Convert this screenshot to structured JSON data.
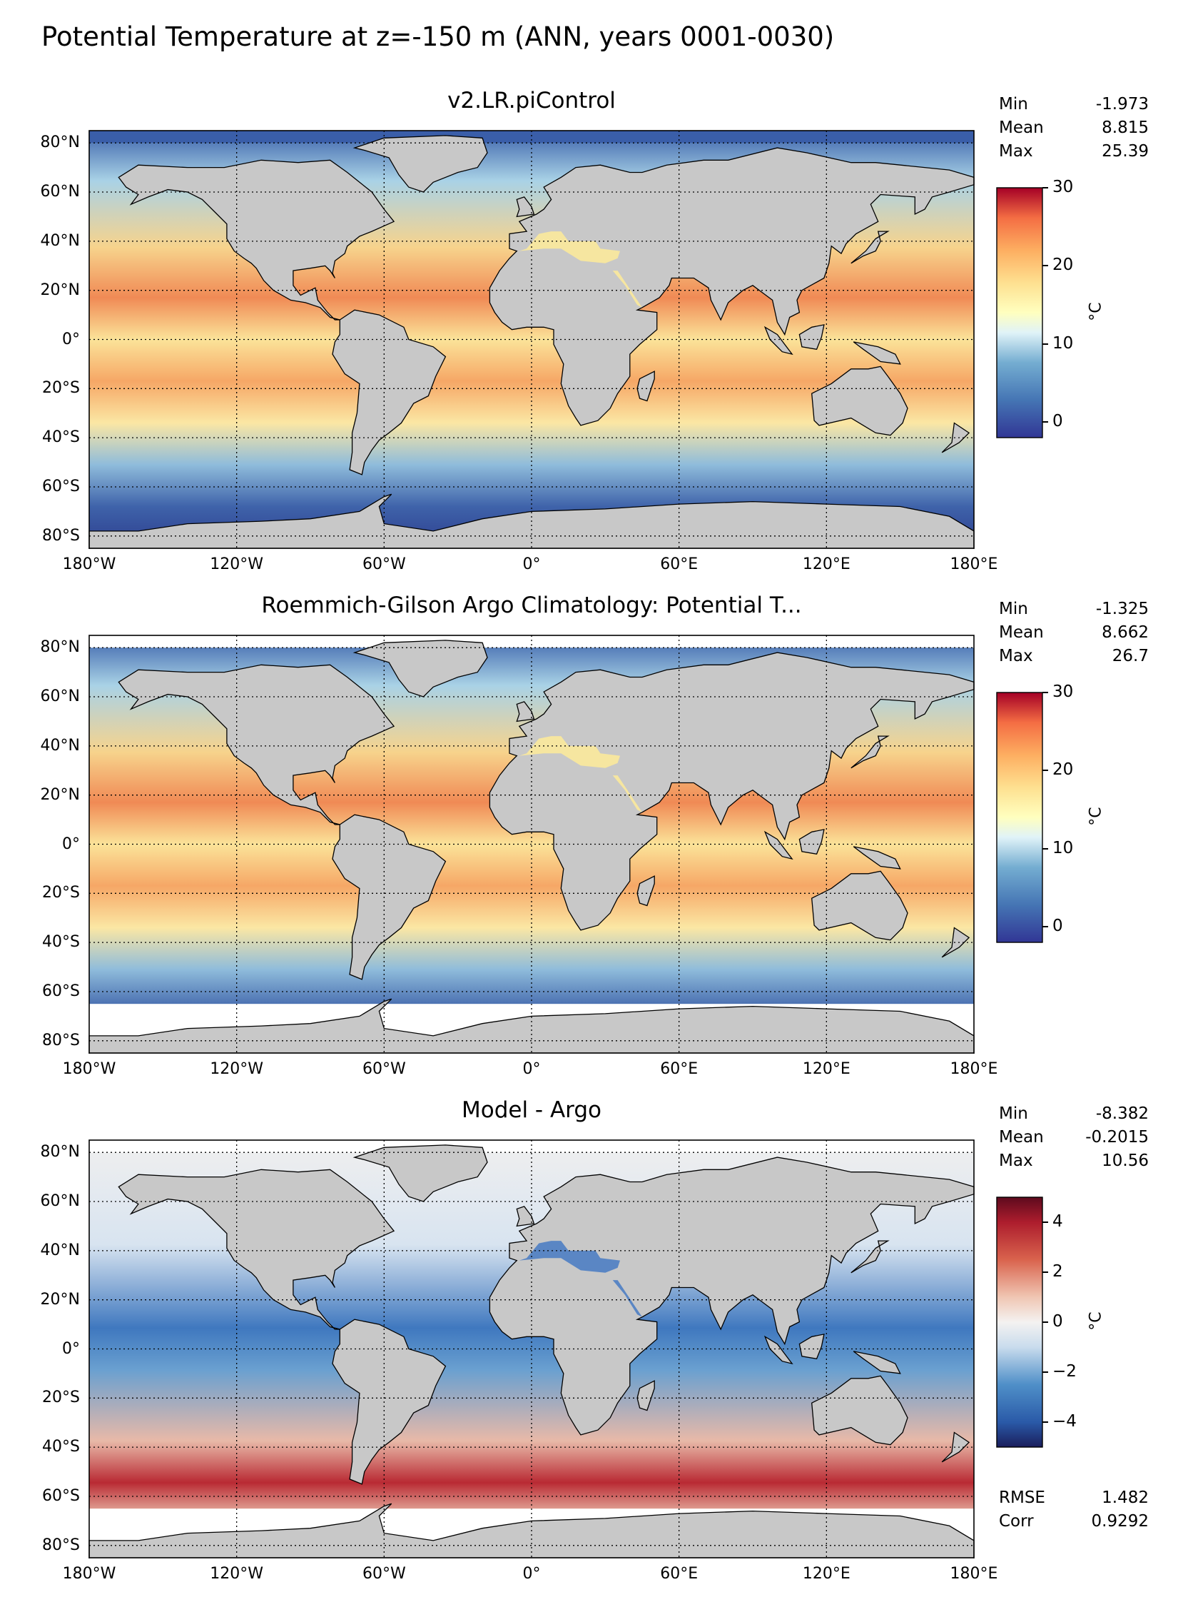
{
  "title": "Potential Temperature at z=-150 m (ANN, years 0001-0030)",
  "lat_ticks": [
    "80°N",
    "60°N",
    "40°N",
    "20°N",
    "0°",
    "20°S",
    "40°S",
    "60°S",
    "80°S"
  ],
  "lon_ticks": [
    "180°W",
    "120°W",
    "60°W",
    "0°",
    "60°E",
    "120°E",
    "180°E"
  ],
  "colors": {
    "land": "#c8c8c8",
    "missing": "#ffffff"
  },
  "panels": [
    {
      "title": "v2.LR.piControl",
      "stats": [
        {
          "label": "Min",
          "value": "-1.973"
        },
        {
          "label": "Mean",
          "value": "8.815"
        },
        {
          "label": "Max",
          "value": "25.39"
        }
      ],
      "colorbar": {
        "ticks": [
          "30",
          "20",
          "10",
          "0"
        ],
        "range": [
          -2,
          30
        ],
        "colormap": "RdYlBu_r",
        "unit": "°C"
      }
    },
    {
      "title": "Roemmich-Gilson Argo Climatology: Potential T...",
      "stats": [
        {
          "label": "Min",
          "value": "-1.325"
        },
        {
          "label": "Mean",
          "value": "8.662"
        },
        {
          "label": "Max",
          "value": "26.7"
        }
      ],
      "colorbar": {
        "ticks": [
          "30",
          "20",
          "10",
          "0"
        ],
        "range": [
          -2,
          30
        ],
        "colormap": "RdYlBu_r",
        "unit": "°C"
      }
    },
    {
      "title": "Model - Argo",
      "stats": [
        {
          "label": "Min",
          "value": "-8.382"
        },
        {
          "label": "Mean",
          "value": "-0.2015"
        },
        {
          "label": "Max",
          "value": "10.56"
        }
      ],
      "extra_stats": [
        {
          "label": "RMSE",
          "value": "1.482"
        },
        {
          "label": "Corr",
          "value": "0.9292"
        }
      ],
      "colorbar": {
        "ticks": [
          "4",
          "2",
          "0",
          "−2",
          "−4"
        ],
        "range": [
          -5,
          5
        ],
        "colormap": "RdBu_r",
        "unit": "°C"
      }
    }
  ]
}
